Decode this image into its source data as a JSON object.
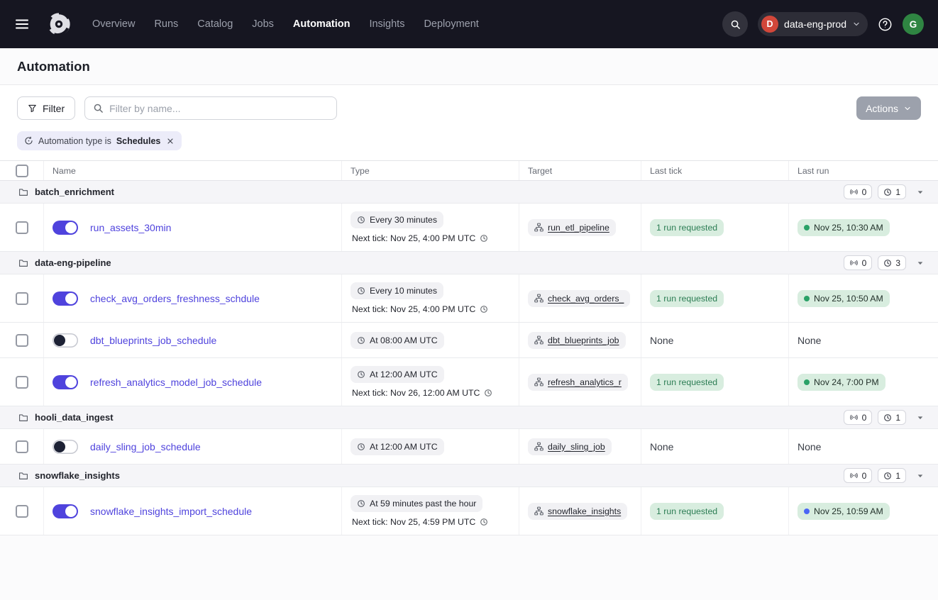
{
  "nav": {
    "items": [
      "Overview",
      "Runs",
      "Catalog",
      "Jobs",
      "Automation",
      "Insights",
      "Deployment"
    ],
    "active_item": "Automation",
    "workspace": {
      "initial": "D",
      "name": "data-eng-prod"
    },
    "user_initial": "G"
  },
  "page": {
    "title": "Automation"
  },
  "toolbar": {
    "filter_label": "Filter",
    "search_placeholder": "Filter by name...",
    "actions_label": "Actions"
  },
  "filter_tag": {
    "prefix": "Automation type is",
    "value": "Schedules"
  },
  "colors": {
    "accent": "#4F43DD",
    "nav_bg": "#161621",
    "success_green": "#2AA167",
    "run_blue": "#4A66F5",
    "green_pill_bg": "#D8EDDF",
    "lavender_tag_bg": "#ECECF9"
  },
  "table": {
    "columns": [
      "Name",
      "Type",
      "Target",
      "Last tick",
      "Last run"
    ],
    "groups": [
      {
        "name": "batch_enrichment",
        "sensor_count": "0",
        "schedule_count": "1",
        "rows": [
          {
            "name": "run_assets_30min",
            "enabled": true,
            "schedule": "Every 30 minutes",
            "next_tick": "Next tick: Nov 25, 4:00 PM UTC",
            "target": "run_etl_pipeline",
            "last_tick": "1 run requested",
            "last_run": "Nov 25, 10:30 AM",
            "last_run_status": "green"
          }
        ]
      },
      {
        "name": "data-eng-pipeline",
        "sensor_count": "0",
        "schedule_count": "3",
        "rows": [
          {
            "name": "check_avg_orders_freshness_schdule",
            "enabled": true,
            "schedule": "Every 10 minutes",
            "next_tick": "Next tick: Nov 25, 4:00 PM UTC",
            "target": "check_avg_orders_",
            "last_tick": "1 run requested",
            "last_run": "Nov 25, 10:50 AM",
            "last_run_status": "green"
          },
          {
            "name": "dbt_blueprints_job_schedule",
            "enabled": false,
            "schedule": "At 08:00 AM UTC",
            "next_tick": null,
            "target": "dbt_blueprints_job",
            "last_tick": "None",
            "last_run": "None",
            "last_run_status": null
          },
          {
            "name": "refresh_analytics_model_job_schedule",
            "enabled": true,
            "schedule": "At 12:00 AM UTC",
            "next_tick": "Next tick: Nov 26, 12:00 AM UTC",
            "target": "refresh_analytics_r",
            "last_tick": "1 run requested",
            "last_run": "Nov 24, 7:00 PM",
            "last_run_status": "green"
          }
        ]
      },
      {
        "name": "hooli_data_ingest",
        "sensor_count": "0",
        "schedule_count": "1",
        "rows": [
          {
            "name": "daily_sling_job_schedule",
            "enabled": false,
            "schedule": "At 12:00 AM UTC",
            "next_tick": null,
            "target": "daily_sling_job",
            "last_tick": "None",
            "last_run": "None",
            "last_run_status": null
          }
        ]
      },
      {
        "name": "snowflake_insights",
        "sensor_count": "0",
        "schedule_count": "1",
        "rows": [
          {
            "name": "snowflake_insights_import_schedule",
            "enabled": true,
            "schedule": "At 59 minutes past the hour",
            "next_tick": "Next tick: Nov 25, 4:59 PM UTC",
            "target": "snowflake_insights",
            "last_tick": "1 run requested",
            "last_run": "Nov 25, 10:59 AM",
            "last_run_status": "blue"
          }
        ]
      }
    ]
  }
}
